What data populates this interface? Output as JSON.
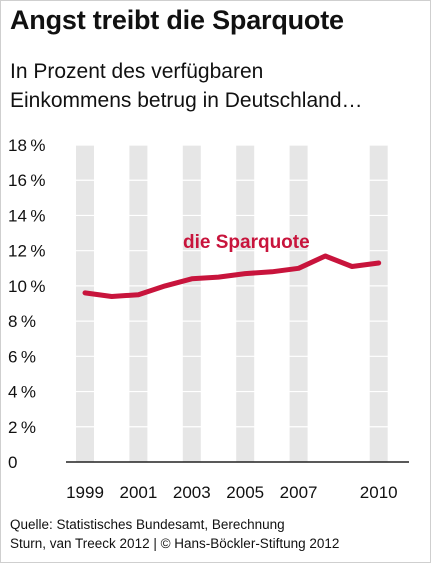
{
  "title": "Angst treibt die Sparquote",
  "subtitle": [
    "In Prozent des verfügbaren",
    "Einkommens betrug in Deutschland…"
  ],
  "footer": [
    "Quelle: Statistisches Bundesamt, Berechnung",
    "Sturn, van Treeck 2012 | © Hans-Böckler-Stiftung 2012"
  ],
  "colors": {
    "line": "#c8143c",
    "band": "#e6e6e6",
    "axis": "#222222"
  },
  "chart_data": {
    "type": "line",
    "x": [
      1999,
      2000,
      2001,
      2002,
      2003,
      2004,
      2005,
      2006,
      2007,
      2008,
      2009,
      2010
    ],
    "series": [
      {
        "name": "die Sparquote",
        "values": [
          9.6,
          9.4,
          9.5,
          10.0,
          10.4,
          10.5,
          10.7,
          10.8,
          11.0,
          11.7,
          11.1,
          11.3
        ]
      }
    ],
    "ylim": [
      0,
      18
    ],
    "yticks": [
      "0",
      "2 %",
      "4 %",
      "6 %",
      "8 %",
      "10 %",
      "12 %",
      "14 %",
      "16 %",
      "18 %"
    ],
    "xtick_labels": [
      "1999",
      "2001",
      "2003",
      "2005",
      "2007",
      "2010"
    ],
    "shaded_years": [
      1999,
      2001,
      2003,
      2005,
      2007,
      2010
    ],
    "grid": true
  }
}
